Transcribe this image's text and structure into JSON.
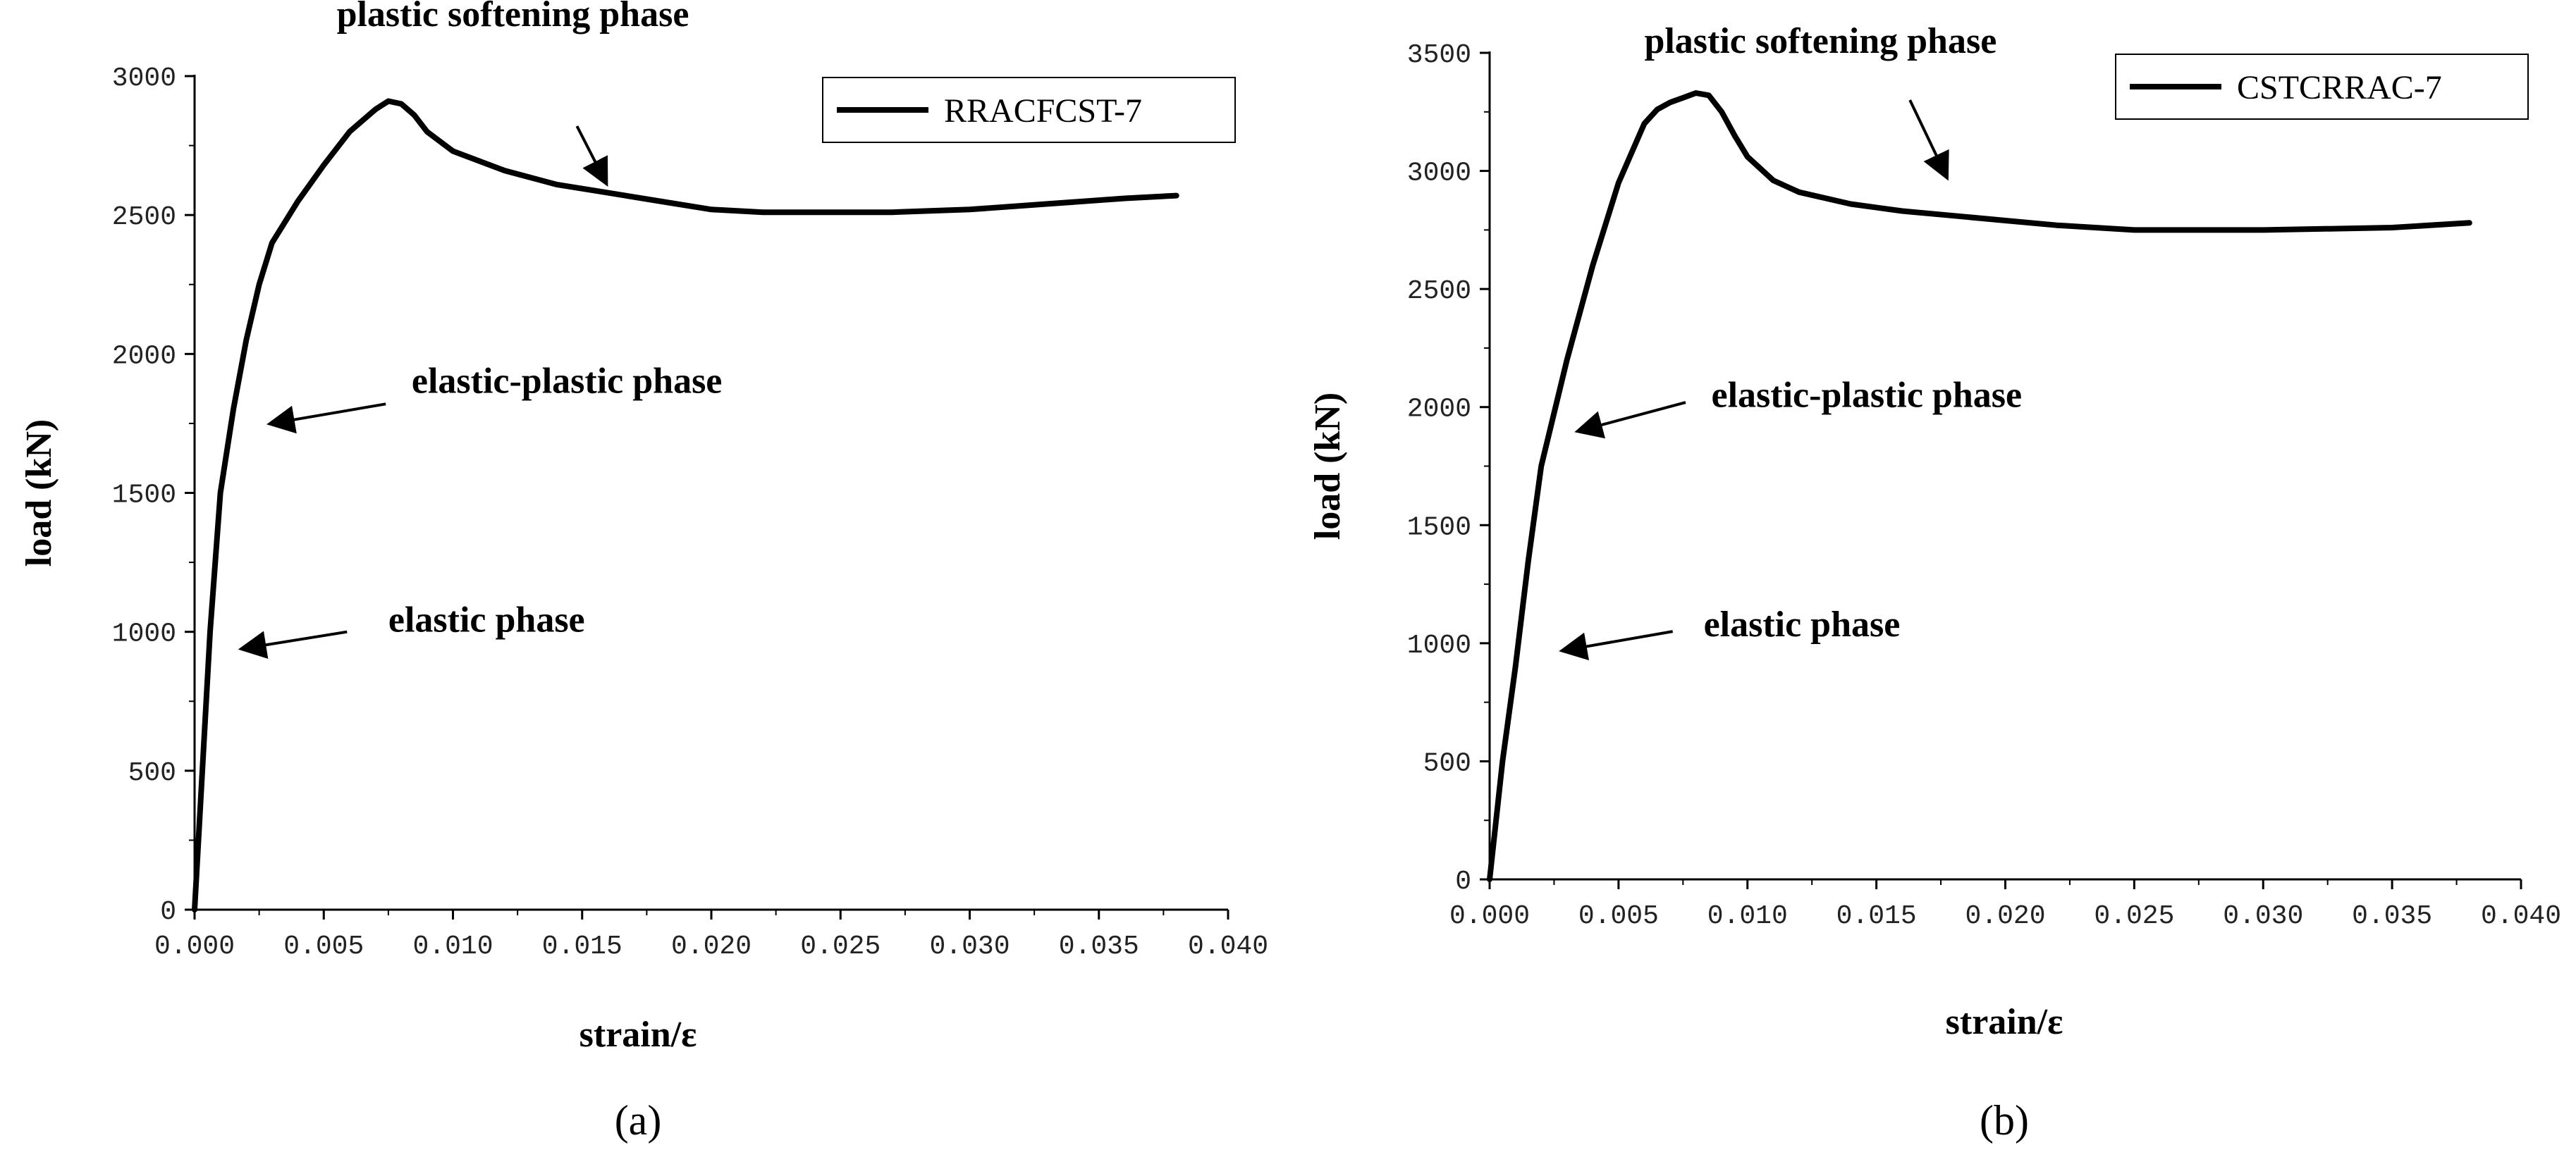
{
  "chart_data": [
    {
      "type": "line",
      "panel_label": "(a)",
      "xlabel": "strain/ε",
      "ylabel": "load (kN)",
      "xlim": [
        0,
        0.04
      ],
      "ylim": [
        0,
        3000
      ],
      "x_ticks": [
        "0.000",
        "0.005",
        "0.010",
        "0.015",
        "0.020",
        "0.025",
        "0.030",
        "0.035",
        "0.040"
      ],
      "y_ticks": [
        "0",
        "500",
        "1000",
        "1500",
        "2000",
        "2500",
        "3000"
      ],
      "legend_position": "top-right",
      "series": [
        {
          "name": "RRACFCST-7",
          "color": "#000000",
          "x": [
            0,
            0.0003,
            0.0006,
            0.001,
            0.0015,
            0.002,
            0.0025,
            0.003,
            0.004,
            0.005,
            0.006,
            0.007,
            0.0075,
            0.008,
            0.0085,
            0.009,
            0.01,
            0.012,
            0.014,
            0.016,
            0.018,
            0.02,
            0.022,
            0.025,
            0.027,
            0.03,
            0.033,
            0.036,
            0.038
          ],
          "y": [
            0,
            500,
            1000,
            1500,
            1800,
            2050,
            2250,
            2400,
            2550,
            2680,
            2800,
            2880,
            2910,
            2900,
            2860,
            2800,
            2730,
            2660,
            2610,
            2580,
            2550,
            2520,
            2510,
            2510,
            2510,
            2520,
            2540,
            2560,
            2570
          ]
        }
      ],
      "annotations": [
        {
          "text": "plastic softening phase",
          "tx": 0.0055,
          "ty": 3180,
          "ax": 0.0148,
          "ay": 2820,
          "hx": 0.0159,
          "hy": 2620
        },
        {
          "text": "elastic-plastic phase",
          "tx": 0.0084,
          "ty": 1860,
          "ax": 0.0074,
          "ay": 1820,
          "hx": 0.003,
          "hy": 1750
        },
        {
          "text": "elastic phase",
          "tx": 0.0075,
          "ty": 1000,
          "ax": 0.0059,
          "ay": 1000,
          "hx": 0.0019,
          "hy": 940
        }
      ]
    },
    {
      "type": "line",
      "panel_label": "(b)",
      "xlabel": "strain/ε",
      "ylabel": "load (kN)",
      "xlim": [
        0,
        0.04
      ],
      "ylim": [
        0,
        3500
      ],
      "x_ticks": [
        "0.000",
        "0.005",
        "0.010",
        "0.015",
        "0.020",
        "0.025",
        "0.030",
        "0.035",
        "0.040"
      ],
      "y_ticks": [
        "0",
        "500",
        "1000",
        "1500",
        "2000",
        "2500",
        "3000",
        "3500"
      ],
      "legend_position": "top-right",
      "series": [
        {
          "name": "CSTCRRAC-7",
          "color": "#000000",
          "x": [
            0,
            0.0005,
            0.001,
            0.0015,
            0.002,
            0.003,
            0.004,
            0.005,
            0.006,
            0.0065,
            0.007,
            0.0075,
            0.008,
            0.0085,
            0.009,
            0.0095,
            0.01,
            0.011,
            0.012,
            0.014,
            0.016,
            0.018,
            0.02,
            0.022,
            0.025,
            0.03,
            0.035,
            0.038
          ],
          "y": [
            0,
            500,
            900,
            1350,
            1750,
            2200,
            2600,
            2950,
            3200,
            3260,
            3290,
            3310,
            3330,
            3320,
            3250,
            3150,
            3060,
            2960,
            2910,
            2860,
            2830,
            2810,
            2790,
            2770,
            2750,
            2750,
            2760,
            2780
          ]
        }
      ],
      "annotations": [
        {
          "text": "plastic softening phase",
          "tx": 0.006,
          "ty": 3500,
          "ax": 0.0163,
          "ay": 3300,
          "hx": 0.0177,
          "hy": 2980
        },
        {
          "text": "elastic-plastic phase",
          "tx": 0.0086,
          "ty": 2000,
          "ax": 0.0076,
          "ay": 2020,
          "hx": 0.0035,
          "hy": 1900
        },
        {
          "text": "elastic phase",
          "tx": 0.0083,
          "ty": 1030,
          "ax": 0.0071,
          "ay": 1050,
          "hx": 0.0029,
          "hy": 970
        }
      ]
    }
  ]
}
